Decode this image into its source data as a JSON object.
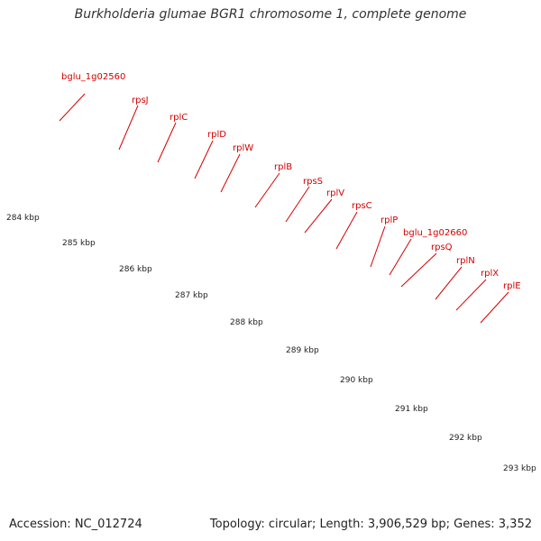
{
  "title": "Burkholderia glumae BGR1 chromosome 1, complete genome",
  "footer": {
    "accession": "Accession: NC_012724",
    "summary": "Topology: circular; Length: 3,906,529 bp; Genes: 3,352"
  },
  "colors": {
    "cds_feature": "#ee0000",
    "gene_band": "#ee8888",
    "backbone": "#999999",
    "tick": "#228b22",
    "label": "#d40000"
  },
  "gene_labels": [
    "bglu_1g02560",
    "rpsJ",
    "rplC",
    "rplD",
    "rplW",
    "rplB",
    "rpsS",
    "rplV",
    "rpsC",
    "rplP",
    "bglu_1g02660",
    "rpsQ",
    "rplN",
    "rplX",
    "rplE"
  ],
  "kbp_labels": [
    "284 kbp",
    "285 kbp",
    "286 kbp",
    "287 kbp",
    "288 kbp",
    "289 kbp",
    "290 kbp",
    "291 kbp",
    "292 kbp",
    "293 kbp"
  ]
}
